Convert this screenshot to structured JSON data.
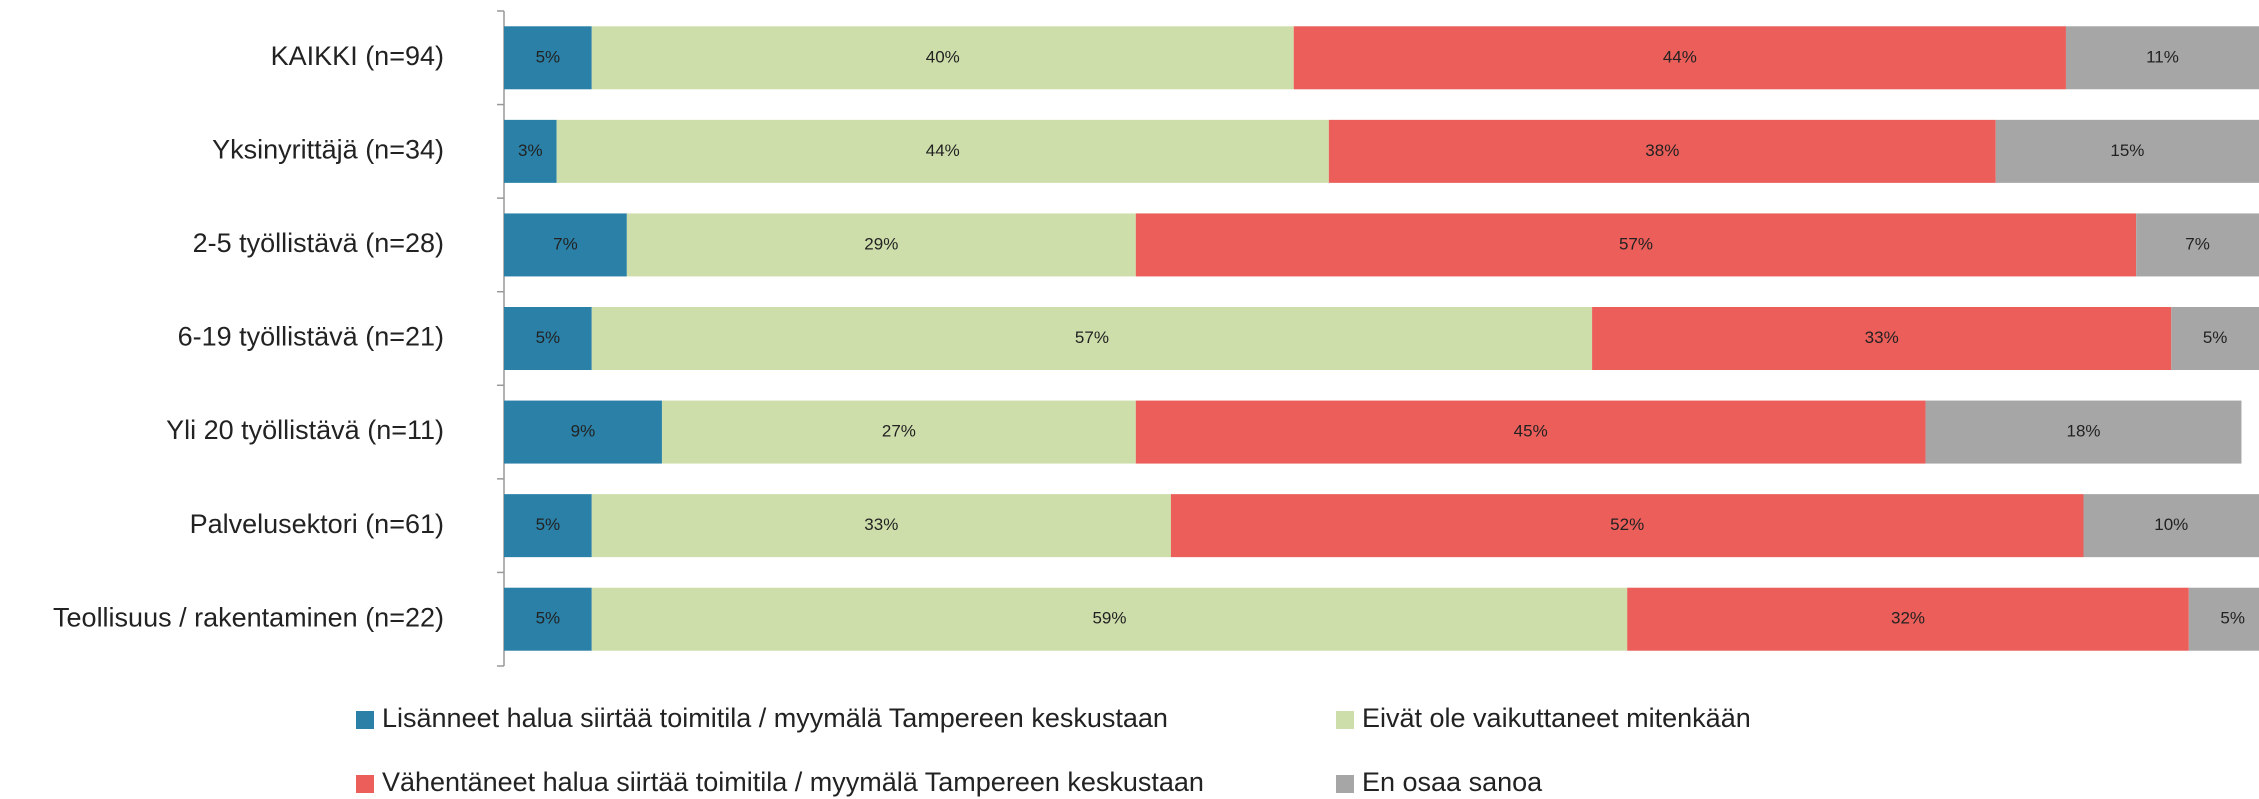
{
  "chart_data": {
    "type": "stacked-barh",
    "categories": [
      "KAIKKI (n=94)",
      "Yksinyrittäjä  (n=34)",
      "2-5 työllistävä (n=28)",
      "6-19 työllistävä (n=21)",
      "Yli 20 työllistävä (n=11)",
      "Palvelusektori (n=61)",
      "Teollisuus / rakentaminen (n=22)"
    ],
    "xlim": [
      0,
      100
    ],
    "series": [
      {
        "name": "Lisänneet halua siirtää toimitila / myymälä Tampereen keskustaan",
        "color": "#2a80a7",
        "values": [
          5,
          3,
          7,
          5,
          9,
          5,
          5
        ],
        "value_labels": [
          "5%",
          "3%",
          "7%",
          "5%",
          "9%",
          "5%",
          "5%"
        ]
      },
      {
        "name": "Eivät ole vaikuttaneet mitenkään",
        "color": "#cedeab",
        "values": [
          40,
          44,
          29,
          57,
          27,
          33,
          59
        ],
        "value_labels": [
          "40%",
          "44%",
          "29%",
          "57%",
          "27%",
          "33%",
          "59%"
        ]
      },
      {
        "name": "Vähentäneet halua siirtää toimitila / myymälä Tampereen keskustaan",
        "color": "#eb5e59",
        "values": [
          44,
          38,
          57,
          33,
          45,
          52,
          32
        ],
        "value_labels": [
          "44%",
          "38%",
          "57%",
          "33%",
          "45%",
          "52%",
          "32%"
        ]
      },
      {
        "name": "En osaa sanoa",
        "color": "#a6a6a6",
        "values": [
          11,
          15,
          7,
          5,
          18,
          10,
          5
        ],
        "value_labels": [
          "11%",
          "15%",
          "7%",
          "5%",
          "18%",
          "10%",
          "5%"
        ]
      }
    ],
    "legend": "bottom"
  }
}
